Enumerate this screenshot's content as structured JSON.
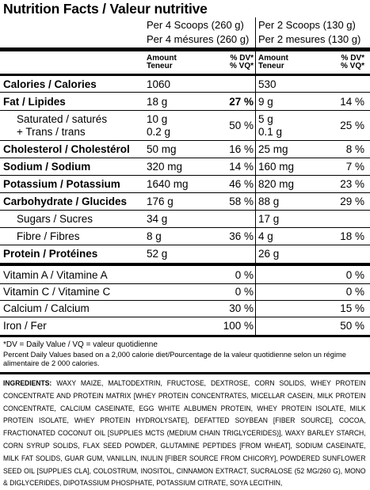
{
  "title": "Nutrition Facts / Valeur nutritive",
  "serving": {
    "col1_line1": "Per 4 Scoops (260 g)",
    "col1_line2": "Per 4 mésures (260 g)",
    "col2_line1": "Per 2 Scoops (130 g)",
    "col2_line2": "Per 2 mesures (130 g)"
  },
  "column_headers": {
    "amount": "Amount",
    "teneur": "Teneur",
    "dv": "% DV*",
    "vq": "% VQ*"
  },
  "rows": [
    {
      "label": "Calories / Calories",
      "bold": true,
      "a1": "1060",
      "dv1": "",
      "a2": "530",
      "dv2": ""
    },
    {
      "label": "Fat / Lipides",
      "bold": true,
      "a1": "18 g",
      "dv1": "27 %",
      "a2": "9 g",
      "dv2": "14 %"
    },
    {
      "label": "Saturated / saturés",
      "label2": "+ Trans / trans",
      "a1": "10 g",
      "a1b": "0.2 g",
      "dv1": "50 %",
      "a2": "5 g",
      "a2b": "0.1 g",
      "dv2": "25 %"
    },
    {
      "label": "Cholesterol / Cholestérol",
      "bold": true,
      "a1": "50 mg",
      "dv1": "16 %",
      "a2": "25 mg",
      "dv2": "8 %"
    },
    {
      "label": "Sodium / Sodium",
      "bold": true,
      "a1": "320 mg",
      "dv1": "14 %",
      "a2": "160 mg",
      "dv2": "7 %"
    },
    {
      "label": "Potassium / Potassium",
      "bold": true,
      "a1": "1640 mg",
      "dv1": "46 %",
      "a2": "820 mg",
      "dv2": "23 %"
    },
    {
      "label": "Carbohydrate / Glucides",
      "bold": true,
      "a1": "176 g",
      "dv1": "58 %",
      "a2": "88 g",
      "dv2": "29 %"
    },
    {
      "label": "Sugars / Sucres",
      "a1": "34 g",
      "dv1": "",
      "a2": "17 g",
      "dv2": ""
    },
    {
      "label": "Fibre / Fibres",
      "a1": "8 g",
      "dv1": "36 %",
      "a2": "4 g",
      "dv2": "18 %"
    },
    {
      "label": "Protein / Protéines",
      "bold": true,
      "a1": "52 g",
      "dv1": "",
      "a2": "26 g",
      "dv2": ""
    },
    {
      "label": "Vitamin A / Vitamine A",
      "a1": "",
      "dv1": "0 %",
      "a2": "",
      "dv2": "0 %"
    },
    {
      "label": "Vitamin C / Vitamine C",
      "a1": "",
      "dv1": "0 %",
      "a2": "",
      "dv2": "0 %"
    },
    {
      "label": "Calcium / Calcium",
      "a1": "",
      "dv1": "30 %",
      "a2": "",
      "dv2": "15 %"
    },
    {
      "label": "Iron / Fer",
      "a1": "",
      "dv1": "100 %",
      "a2": "",
      "dv2": "50 %"
    }
  ],
  "footnote_dv": "*DV = Daily Value / VQ = valeur quotidienne",
  "footnote_percent": "Percent Daily Values based on a 2,000 calorie diet/Pourcentage de la valeur quotidienne selon un régime alimentaire de 2 000 calories.",
  "ingredients_label": "INGREDIENTS:",
  "ingredients_text": "WAXY MAIZE, MALTODEXTRIN, FRUCTOSE, DEXTROSE, CORN SOLIDS, WHEY PROTEIN CONCENTRATE AND PROTEIN MATRIX [WHEY PROTEIN CONCENTRATES, MICELLAR CASEIN, MILK PROTEIN CONCENTRATE, CALCIUM CASEINATE, EGG WHITE ALBUMEN PROTEIN, WHEY PROTEIN ISOLATE, MILK PROTEIN ISOLATE, WHEY PROTEIN HYDROLYSATE], DEFATTED SOYBEAN [FIBER SOURCE], COCOA, FRACTIONATED COCONUT OIL [SUPPLIES MCTS (MEDIUM CHAIN TRIGLYCERIDES)], WAXY BARLEY STARCH, CORN SYRUP SOLIDS, FLAX SEED POWDER, GLUTAMINE PEPTIDES [FROM WHEAT], SODIUM CASEINATE, MILK FAT SOLIDS, GUAR GUM, VANILLIN, INULIN [FIBER SOURCE FROM CHICORY], POWDERED SUNFLOWER SEED OIL [SUPPLIES CLA], COLOSTRUM, INOSITOL, CINNAMON EXTRACT, SUCRALOSE (52 MG/260 G), MONO & DIGLYCERIDES, DIPOTASSIUM PHOSPHATE, POTASSIUM CITRATE, SOYA LECITHIN,"
}
